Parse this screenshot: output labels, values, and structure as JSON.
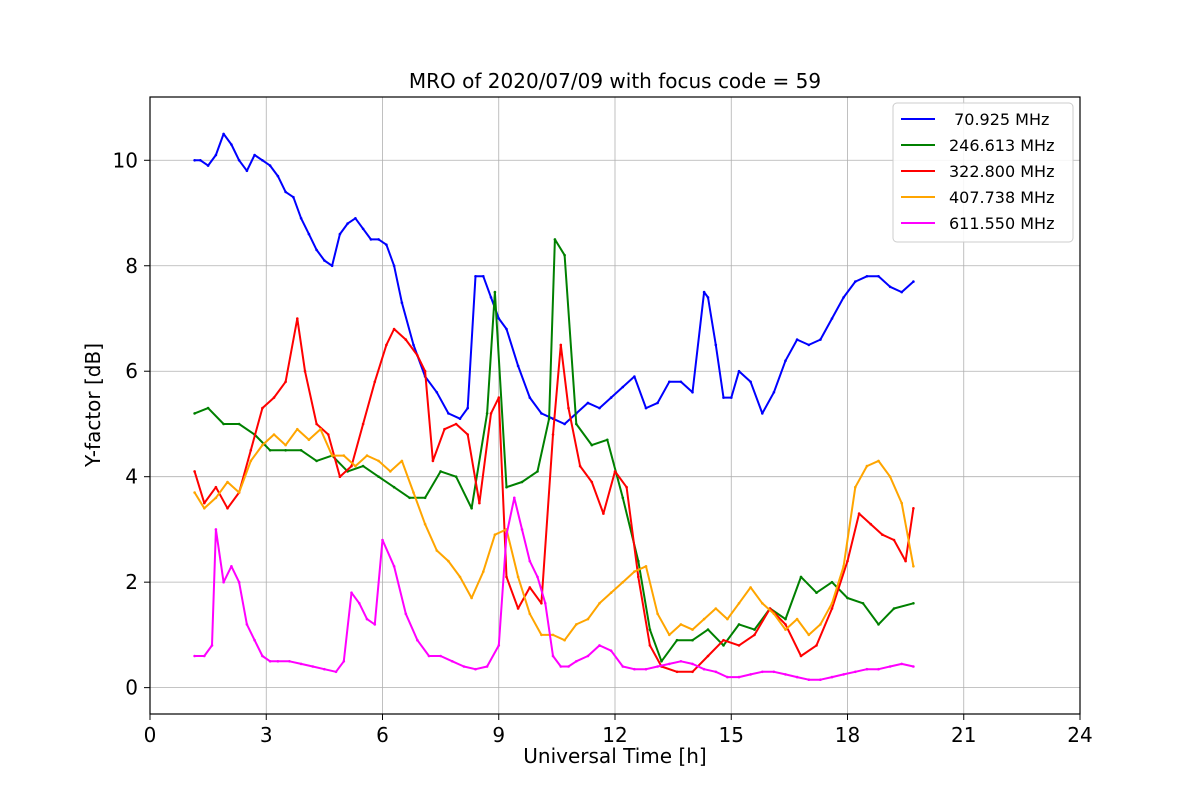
{
  "chart_data": {
    "type": "line",
    "title": "MRO of 2020/07/09 with focus code = 59",
    "xlabel": "Universal Time [h]",
    "ylabel": "Y-factor [dB]",
    "xlim": [
      0,
      24
    ],
    "ylim": [
      -0.5,
      11.2
    ],
    "xticks": [
      0,
      3,
      6,
      9,
      12,
      15,
      18,
      21,
      24
    ],
    "yticks": [
      0,
      2,
      4,
      6,
      8,
      10
    ],
    "grid": true,
    "legend_position": "top-right",
    "series": [
      {
        "name": " 70.925 MHz",
        "color": "#0000ff",
        "x": [
          1.15,
          1.3,
          1.5,
          1.7,
          1.9,
          2.1,
          2.3,
          2.5,
          2.7,
          2.9,
          3.1,
          3.3,
          3.5,
          3.7,
          3.9,
          4.1,
          4.3,
          4.5,
          4.7,
          4.9,
          5.1,
          5.3,
          5.5,
          5.7,
          5.9,
          6.1,
          6.3,
          6.5,
          6.8,
          7.1,
          7.4,
          7.7,
          8.0,
          8.2,
          8.4,
          8.6,
          8.8,
          9.0,
          9.2,
          9.5,
          9.8,
          10.1,
          10.4,
          10.7,
          11.0,
          11.3,
          11.6,
          11.9,
          12.2,
          12.5,
          12.8,
          13.1,
          13.4,
          13.7,
          14.0,
          14.3,
          14.4,
          14.6,
          14.8,
          15.0,
          15.2,
          15.5,
          15.8,
          16.1,
          16.4,
          16.7,
          17.0,
          17.3,
          17.6,
          17.9,
          18.2,
          18.5,
          18.8,
          19.1,
          19.4,
          19.7
        ],
        "y": [
          10.0,
          10.0,
          9.9,
          10.1,
          10.5,
          10.3,
          10.0,
          9.8,
          10.1,
          10.0,
          9.9,
          9.7,
          9.4,
          9.3,
          8.9,
          8.6,
          8.3,
          8.1,
          8.0,
          8.6,
          8.8,
          8.9,
          8.7,
          8.5,
          8.5,
          8.4,
          8.0,
          7.3,
          6.5,
          5.9,
          5.6,
          5.2,
          5.1,
          5.3,
          7.8,
          7.8,
          7.4,
          7.0,
          6.8,
          6.1,
          5.5,
          5.2,
          5.1,
          5.0,
          5.2,
          5.4,
          5.3,
          5.5,
          5.7,
          5.9,
          5.3,
          5.4,
          5.8,
          5.8,
          5.6,
          7.5,
          7.4,
          6.5,
          5.5,
          5.5,
          6.0,
          5.8,
          5.2,
          5.6,
          6.2,
          6.6,
          6.5,
          6.6,
          7.0,
          7.4,
          7.7,
          7.8,
          7.8,
          7.6,
          7.5,
          7.7
        ]
      },
      {
        "name": "246.613 MHz",
        "color": "#008000",
        "x": [
          1.15,
          1.5,
          1.9,
          2.3,
          2.7,
          3.1,
          3.5,
          3.9,
          4.3,
          4.7,
          5.1,
          5.5,
          5.9,
          6.3,
          6.7,
          7.1,
          7.5,
          7.9,
          8.3,
          8.7,
          8.9,
          9.2,
          9.6,
          10.0,
          10.3,
          10.45,
          10.7,
          11.0,
          11.4,
          11.8,
          12.2,
          12.6,
          12.9,
          13.2,
          13.6,
          14.0,
          14.4,
          14.8,
          15.2,
          15.6,
          16.0,
          16.4,
          16.8,
          17.2,
          17.6,
          18.0,
          18.4,
          18.8,
          19.2,
          19.7
        ],
        "y": [
          5.2,
          5.3,
          5.0,
          5.0,
          4.8,
          4.5,
          4.5,
          4.5,
          4.3,
          4.4,
          4.1,
          4.2,
          4.0,
          3.8,
          3.6,
          3.6,
          4.1,
          4.0,
          3.4,
          5.2,
          7.5,
          3.8,
          3.9,
          4.1,
          5.1,
          8.5,
          8.2,
          5.0,
          4.6,
          4.7,
          3.6,
          2.4,
          1.1,
          0.5,
          0.9,
          0.9,
          1.1,
          0.8,
          1.2,
          1.1,
          1.5,
          1.3,
          2.1,
          1.8,
          2.0,
          1.7,
          1.6,
          1.2,
          1.5,
          1.6
        ]
      },
      {
        "name": "322.800 MHz",
        "color": "#ff0000",
        "x": [
          1.15,
          1.4,
          1.7,
          2.0,
          2.3,
          2.6,
          2.9,
          3.2,
          3.5,
          3.8,
          4.0,
          4.3,
          4.6,
          4.9,
          5.2,
          5.5,
          5.8,
          6.1,
          6.3,
          6.6,
          6.9,
          7.1,
          7.3,
          7.6,
          7.9,
          8.2,
          8.5,
          8.8,
          9.0,
          9.2,
          9.5,
          9.8,
          10.1,
          10.4,
          10.6,
          10.8,
          11.1,
          11.4,
          11.7,
          12.0,
          12.3,
          12.6,
          12.9,
          13.2,
          13.6,
          14.0,
          14.4,
          14.8,
          15.2,
          15.6,
          16.0,
          16.4,
          16.8,
          17.2,
          17.6,
          18.0,
          18.3,
          18.6,
          18.9,
          19.2,
          19.5,
          19.7
        ],
        "y": [
          4.1,
          3.5,
          3.8,
          3.4,
          3.7,
          4.5,
          5.3,
          5.5,
          5.8,
          7.0,
          6.0,
          5.0,
          4.8,
          4.0,
          4.2,
          5.0,
          5.8,
          6.5,
          6.8,
          6.6,
          6.3,
          6.0,
          4.3,
          4.9,
          5.0,
          4.8,
          3.5,
          5.2,
          5.5,
          2.1,
          1.5,
          1.9,
          1.6,
          4.8,
          6.5,
          5.3,
          4.2,
          3.9,
          3.3,
          4.1,
          3.8,
          2.1,
          0.8,
          0.4,
          0.3,
          0.3,
          0.6,
          0.9,
          0.8,
          1.0,
          1.5,
          1.2,
          0.6,
          0.8,
          1.5,
          2.4,
          3.3,
          3.1,
          2.9,
          2.8,
          2.4,
          3.4
        ]
      },
      {
        "name": "407.738 MHz",
        "color": "#ffa500",
        "x": [
          1.15,
          1.4,
          1.7,
          2.0,
          2.3,
          2.6,
          2.9,
          3.2,
          3.5,
          3.8,
          4.1,
          4.4,
          4.7,
          5.0,
          5.3,
          5.6,
          5.9,
          6.2,
          6.5,
          6.8,
          7.1,
          7.4,
          7.7,
          8.0,
          8.3,
          8.6,
          8.9,
          9.2,
          9.5,
          9.8,
          10.1,
          10.4,
          10.7,
          11.0,
          11.3,
          11.6,
          11.9,
          12.2,
          12.5,
          12.8,
          13.1,
          13.4,
          13.7,
          14.0,
          14.3,
          14.6,
          14.9,
          15.2,
          15.5,
          15.8,
          16.1,
          16.4,
          16.7,
          17.0,
          17.3,
          17.6,
          17.9,
          18.2,
          18.5,
          18.8,
          19.1,
          19.4,
          19.7
        ],
        "y": [
          3.7,
          3.4,
          3.6,
          3.9,
          3.7,
          4.3,
          4.6,
          4.8,
          4.6,
          4.9,
          4.7,
          4.9,
          4.4,
          4.4,
          4.2,
          4.4,
          4.3,
          4.1,
          4.3,
          3.7,
          3.1,
          2.6,
          2.4,
          2.1,
          1.7,
          2.2,
          2.9,
          3.0,
          2.1,
          1.4,
          1.0,
          1.0,
          0.9,
          1.2,
          1.3,
          1.6,
          1.8,
          2.0,
          2.2,
          2.3,
          1.4,
          1.0,
          1.2,
          1.1,
          1.3,
          1.5,
          1.3,
          1.6,
          1.9,
          1.6,
          1.4,
          1.1,
          1.3,
          1.0,
          1.2,
          1.6,
          2.3,
          3.8,
          4.2,
          4.3,
          4.0,
          3.5,
          2.3
        ]
      },
      {
        "name": "611.550 MHz",
        "color": "#ff00ff",
        "x": [
          1.15,
          1.4,
          1.6,
          1.7,
          1.9,
          2.1,
          2.3,
          2.5,
          2.7,
          2.9,
          3.1,
          3.3,
          3.6,
          3.9,
          4.2,
          4.5,
          4.8,
          5.0,
          5.2,
          5.4,
          5.6,
          5.8,
          6.0,
          6.3,
          6.6,
          6.9,
          7.2,
          7.5,
          7.8,
          8.1,
          8.4,
          8.7,
          9.0,
          9.2,
          9.4,
          9.6,
          9.8,
          10.0,
          10.2,
          10.4,
          10.6,
          10.8,
          11.0,
          11.3,
          11.6,
          11.9,
          12.2,
          12.5,
          12.8,
          13.1,
          13.4,
          13.7,
          14.0,
          14.3,
          14.6,
          14.9,
          15.2,
          15.5,
          15.8,
          16.1,
          16.4,
          16.7,
          17.0,
          17.3,
          17.6,
          17.9,
          18.2,
          18.5,
          18.8,
          19.1,
          19.4,
          19.7
        ],
        "y": [
          0.6,
          0.6,
          0.8,
          3.0,
          2.0,
          2.3,
          2.0,
          1.2,
          0.9,
          0.6,
          0.5,
          0.5,
          0.5,
          0.45,
          0.4,
          0.35,
          0.3,
          0.5,
          1.8,
          1.6,
          1.3,
          1.2,
          2.8,
          2.3,
          1.4,
          0.9,
          0.6,
          0.6,
          0.5,
          0.4,
          0.35,
          0.4,
          0.8,
          2.9,
          3.6,
          3.0,
          2.4,
          2.1,
          1.6,
          0.6,
          0.4,
          0.4,
          0.5,
          0.6,
          0.8,
          0.7,
          0.4,
          0.35,
          0.35,
          0.4,
          0.45,
          0.5,
          0.45,
          0.35,
          0.3,
          0.2,
          0.2,
          0.25,
          0.3,
          0.3,
          0.25,
          0.2,
          0.15,
          0.15,
          0.2,
          0.25,
          0.3,
          0.35,
          0.35,
          0.4,
          0.45,
          0.4
        ]
      }
    ]
  }
}
